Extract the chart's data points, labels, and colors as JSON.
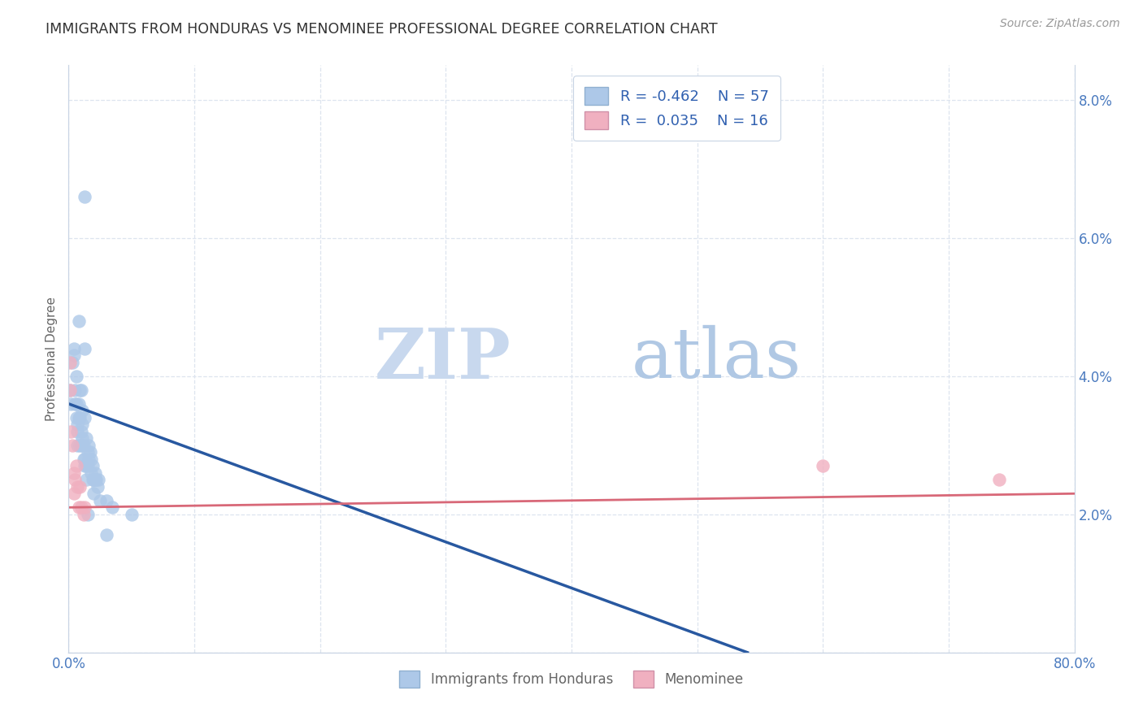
{
  "title": "IMMIGRANTS FROM HONDURAS VS MENOMINEE PROFESSIONAL DEGREE CORRELATION CHART",
  "source": "Source: ZipAtlas.com",
  "ylabel": "Professional Degree",
  "xlim": [
    0.0,
    0.8
  ],
  "ylim": [
    0.0,
    0.085
  ],
  "yticks": [
    0.0,
    0.02,
    0.04,
    0.06,
    0.08
  ],
  "ytick_labels_left": [
    "",
    "",
    "",
    "",
    ""
  ],
  "ytick_labels_right": [
    "",
    "2.0%",
    "4.0%",
    "6.0%",
    "8.0%"
  ],
  "xticks": [
    0.0,
    0.1,
    0.2,
    0.3,
    0.4,
    0.5,
    0.6,
    0.7,
    0.8
  ],
  "xtick_labels": [
    "0.0%",
    "",
    "",
    "",
    "",
    "",
    "",
    "",
    "80.0%"
  ],
  "legend_blue_r": "-0.462",
  "legend_blue_n": "57",
  "legend_pink_r": "0.035",
  "legend_pink_n": "16",
  "legend_label_blue": "Immigrants from Honduras",
  "legend_label_pink": "Menominee",
  "blue_color": "#adc8e8",
  "pink_color": "#f0b0c0",
  "blue_line_color": "#2858a0",
  "pink_line_color": "#d86878",
  "blue_scatter": [
    [
      0.001,
      0.038
    ],
    [
      0.002,
      0.036
    ],
    [
      0.003,
      0.042
    ],
    [
      0.004,
      0.043
    ],
    [
      0.004,
      0.044
    ],
    [
      0.005,
      0.038
    ],
    [
      0.005,
      0.036
    ],
    [
      0.006,
      0.04
    ],
    [
      0.006,
      0.036
    ],
    [
      0.006,
      0.034
    ],
    [
      0.007,
      0.032
    ],
    [
      0.007,
      0.033
    ],
    [
      0.007,
      0.03
    ],
    [
      0.008,
      0.048
    ],
    [
      0.008,
      0.036
    ],
    [
      0.008,
      0.034
    ],
    [
      0.009,
      0.038
    ],
    [
      0.009,
      0.034
    ],
    [
      0.009,
      0.03
    ],
    [
      0.01,
      0.038
    ],
    [
      0.01,
      0.032
    ],
    [
      0.01,
      0.03
    ],
    [
      0.011,
      0.035
    ],
    [
      0.011,
      0.033
    ],
    [
      0.011,
      0.031
    ],
    [
      0.012,
      0.03
    ],
    [
      0.012,
      0.028
    ],
    [
      0.013,
      0.044
    ],
    [
      0.013,
      0.034
    ],
    [
      0.013,
      0.028
    ],
    [
      0.013,
      0.027
    ],
    [
      0.014,
      0.031
    ],
    [
      0.014,
      0.027
    ],
    [
      0.014,
      0.025
    ],
    [
      0.015,
      0.029
    ],
    [
      0.015,
      0.027
    ],
    [
      0.015,
      0.02
    ],
    [
      0.016,
      0.03
    ],
    [
      0.016,
      0.028
    ],
    [
      0.017,
      0.029
    ],
    [
      0.018,
      0.028
    ],
    [
      0.018,
      0.026
    ],
    [
      0.019,
      0.027
    ],
    [
      0.019,
      0.025
    ],
    [
      0.02,
      0.025
    ],
    [
      0.02,
      0.023
    ],
    [
      0.021,
      0.026
    ],
    [
      0.021,
      0.025
    ],
    [
      0.022,
      0.025
    ],
    [
      0.023,
      0.024
    ],
    [
      0.024,
      0.025
    ],
    [
      0.025,
      0.022
    ],
    [
      0.03,
      0.022
    ],
    [
      0.03,
      0.017
    ],
    [
      0.035,
      0.021
    ],
    [
      0.05,
      0.02
    ],
    [
      0.013,
      0.066
    ]
  ],
  "pink_scatter": [
    [
      0.001,
      0.042
    ],
    [
      0.001,
      0.038
    ],
    [
      0.002,
      0.032
    ],
    [
      0.003,
      0.03
    ],
    [
      0.004,
      0.026
    ],
    [
      0.004,
      0.023
    ],
    [
      0.005,
      0.025
    ],
    [
      0.006,
      0.027
    ],
    [
      0.007,
      0.024
    ],
    [
      0.008,
      0.021
    ],
    [
      0.009,
      0.024
    ],
    [
      0.01,
      0.021
    ],
    [
      0.012,
      0.02
    ],
    [
      0.013,
      0.021
    ],
    [
      0.6,
      0.027
    ],
    [
      0.74,
      0.025
    ]
  ],
  "blue_line": [
    [
      0.0,
      0.036
    ],
    [
      0.54,
      0.0
    ]
  ],
  "pink_line": [
    [
      0.0,
      0.021
    ],
    [
      0.8,
      0.023
    ]
  ],
  "watermark_zip": "ZIP",
  "watermark_atlas": "atlas",
  "background_color": "#ffffff",
  "grid_color": "#dde4ef"
}
